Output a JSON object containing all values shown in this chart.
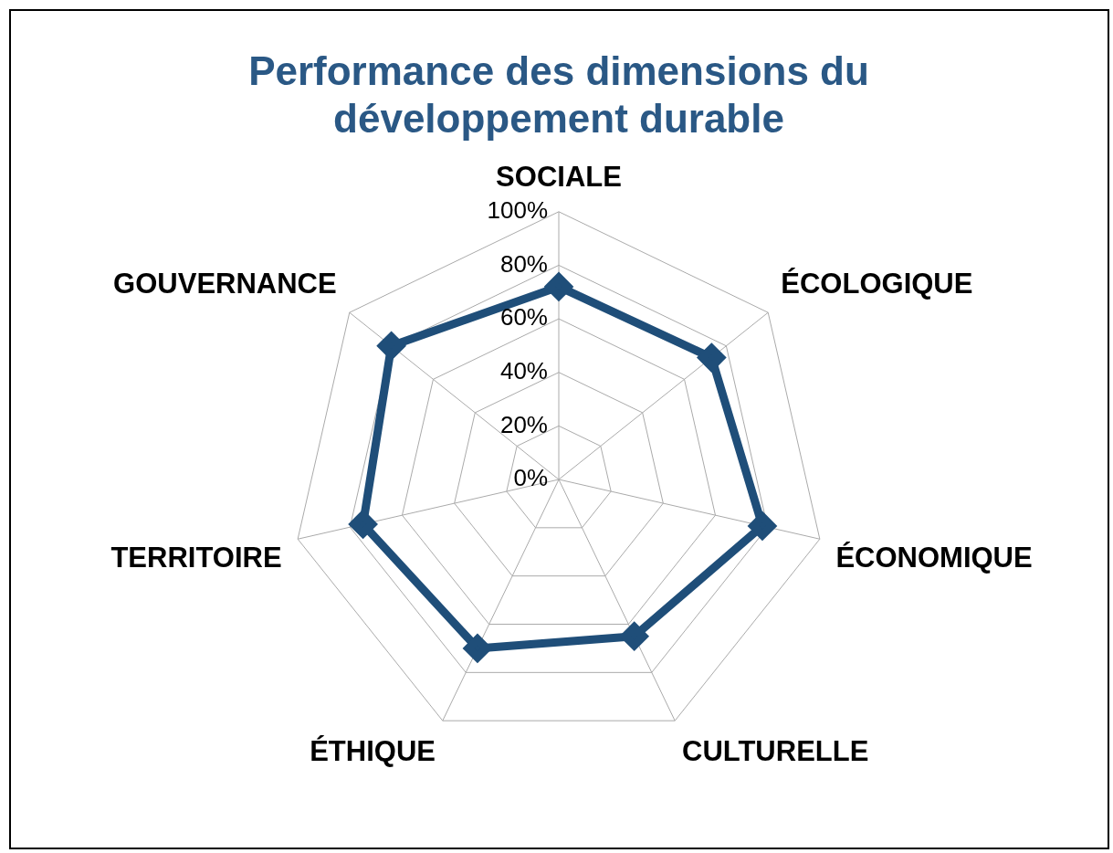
{
  "chart_data": {
    "type": "radar",
    "title": "Performance des dimensions du développement durable",
    "categories": [
      "SOCIALE",
      "ÉCOLOGIQUE",
      "ÉCONOMIQUE",
      "CULTURELLE",
      "ÉTHIQUE",
      "TERRITOIRE",
      "GOUVERNANCE"
    ],
    "series": [
      {
        "color": "#1f4e79",
        "values": [
          72,
          73,
          78,
          65,
          70,
          75,
          80
        ]
      }
    ],
    "ylim": [
      0,
      100
    ],
    "yticks": [
      {
        "value": 0,
        "label": "0%"
      },
      {
        "value": 20,
        "label": "20%"
      },
      {
        "value": 40,
        "label": "40%"
      },
      {
        "value": 60,
        "label": "60%"
      },
      {
        "value": 80,
        "label": "80%"
      },
      {
        "value": 100,
        "label": "100%"
      }
    ],
    "grid": true,
    "marker": "diamond",
    "legend": false
  }
}
